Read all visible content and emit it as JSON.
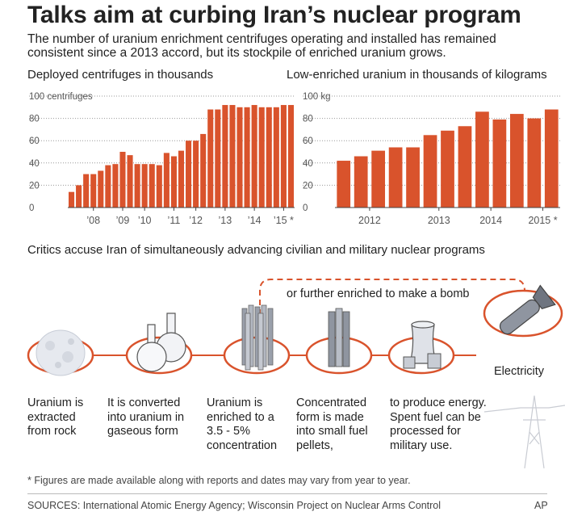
{
  "header": {
    "title": "Talks aim at curbing Iran’s nuclear program",
    "subtitle": "The number of uranium enrichment centrifuges operating and installed has remained consistent since a 2013 accord, but its stockpile of enriched uranium grows."
  },
  "colors": {
    "bar": "#d9532c",
    "grid": "#999999",
    "axis_text": "#555555",
    "accent_ring": "#d9532c"
  },
  "chart_data": [
    {
      "type": "bar",
      "title": "Deployed centrifuges in thousands",
      "ylim": [
        0,
        100
      ],
      "yticks": [
        0,
        20,
        40,
        60,
        80,
        100
      ],
      "ytick_labels": [
        "0",
        "20",
        "40",
        "60",
        "80",
        "100 centrifuges"
      ],
      "xtick_labels": [
        {
          "label": "’08",
          "bar_index": 3
        },
        {
          "label": "’09",
          "bar_index": 7
        },
        {
          "label": "’10",
          "bar_index": 10
        },
        {
          "label": "’11",
          "bar_index": 14
        },
        {
          "label": "’12",
          "bar_index": 17
        },
        {
          "label": "’13",
          "bar_index": 21
        },
        {
          "label": "’14",
          "bar_index": 25
        },
        {
          "label": "’15 *",
          "bar_index": 29
        }
      ],
      "values": [
        14,
        20,
        30,
        30,
        33,
        38,
        39,
        50,
        47,
        39,
        39,
        39,
        38,
        49,
        46,
        51,
        60,
        60,
        66,
        88,
        88,
        92,
        92,
        90,
        90,
        92,
        90,
        90,
        90,
        92,
        92
      ],
      "grid": true
    },
    {
      "type": "bar",
      "title": "Low-enriched uranium in thousands of kilograms",
      "ylim": [
        0,
        100
      ],
      "yticks": [
        0,
        20,
        40,
        60,
        80,
        100
      ],
      "ytick_labels": [
        "0",
        "20",
        "40",
        "60",
        "80",
        "100 kg"
      ],
      "xtick_labels": [
        {
          "label": "2012",
          "bar_index": 1.5
        },
        {
          "label": "2013",
          "bar_index": 5.5
        },
        {
          "label": "2014",
          "bar_index": 8.5
        },
        {
          "label": "2015 *",
          "bar_index": 11.5
        }
      ],
      "values": [
        42,
        46,
        51,
        54,
        54,
        65,
        69,
        73,
        86,
        79,
        84,
        80,
        88
      ],
      "grid": true
    }
  ],
  "critics_heading": "Critics accuse Iran of simultaneously advancing civilian and military nuclear programs",
  "process": {
    "steps": [
      "Uranium is extracted from rock",
      "It is converted into uranium in gaseous form",
      "Uranium is enriched to a 3.5 - 5% concentration",
      "Concentrated form is made into small fuel pellets,",
      "to produce energy. Spent fuel can be processed for military use."
    ],
    "bomb_branch": "or further enriched to make a bomb",
    "electricity": "Electricity",
    "icons": [
      "rock-icon",
      "flask-icon",
      "centrifuge-tubes-icon",
      "fuel-rods-icon",
      "power-plant-icon",
      "bomb-icon",
      "power-pylon-icon"
    ]
  },
  "footnote": "* Figures are made available along with reports and dates may vary from year to year.",
  "sources": "SOURCES: International Atomic Energy Agency; Wisconsin Project on Nuclear Arms Control",
  "credit": "AP"
}
